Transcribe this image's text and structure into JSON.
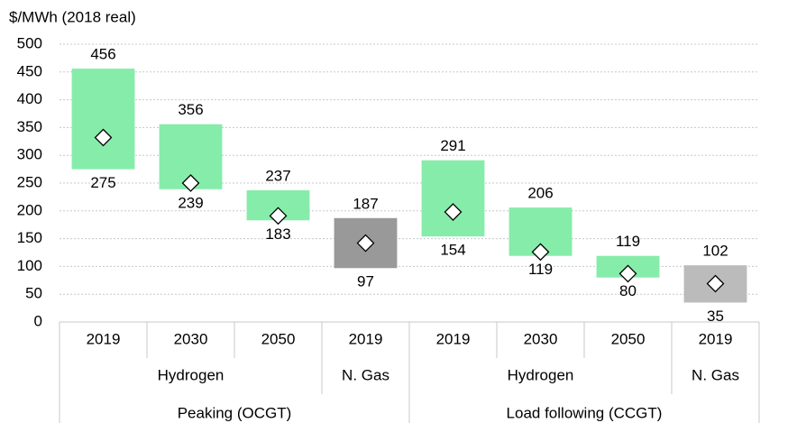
{
  "chart_data": {
    "type": "floating_bar",
    "y_axis_label": "$/MWh (2018 real)",
    "categories": [
      "2019",
      "2030",
      "2050",
      "2019",
      "2019",
      "2030",
      "2050",
      "2019"
    ],
    "subgroups": [
      "Hydrogen",
      "Hydrogen",
      "Hydrogen",
      "N. Gas",
      "Hydrogen",
      "Hydrogen",
      "Hydrogen",
      "N. Gas"
    ],
    "groups": [
      "Peaking (OCGT)",
      "Peaking (OCGT)",
      "Peaking (OCGT)",
      "Peaking (OCGT)",
      "Load following (CCGT)",
      "Load following (CCGT)",
      "Load following (CCGT)",
      "Load following (CCGT)"
    ],
    "low": [
      275,
      239,
      183,
      97,
      154,
      119,
      80,
      35
    ],
    "high": [
      456,
      356,
      237,
      187,
      291,
      206,
      119,
      102
    ],
    "mid": [
      332,
      250,
      191,
      142,
      198,
      126,
      87,
      69
    ],
    "colors": [
      "#86ecaa",
      "#86ecaa",
      "#86ecaa",
      "#999999",
      "#86ecaa",
      "#86ecaa",
      "#86ecaa",
      "#bbbbbb"
    ],
    "ylim": [
      0,
      500
    ],
    "yticks": [
      0,
      50,
      100,
      150,
      200,
      250,
      300,
      350,
      400,
      450,
      500
    ],
    "grid": true
  }
}
